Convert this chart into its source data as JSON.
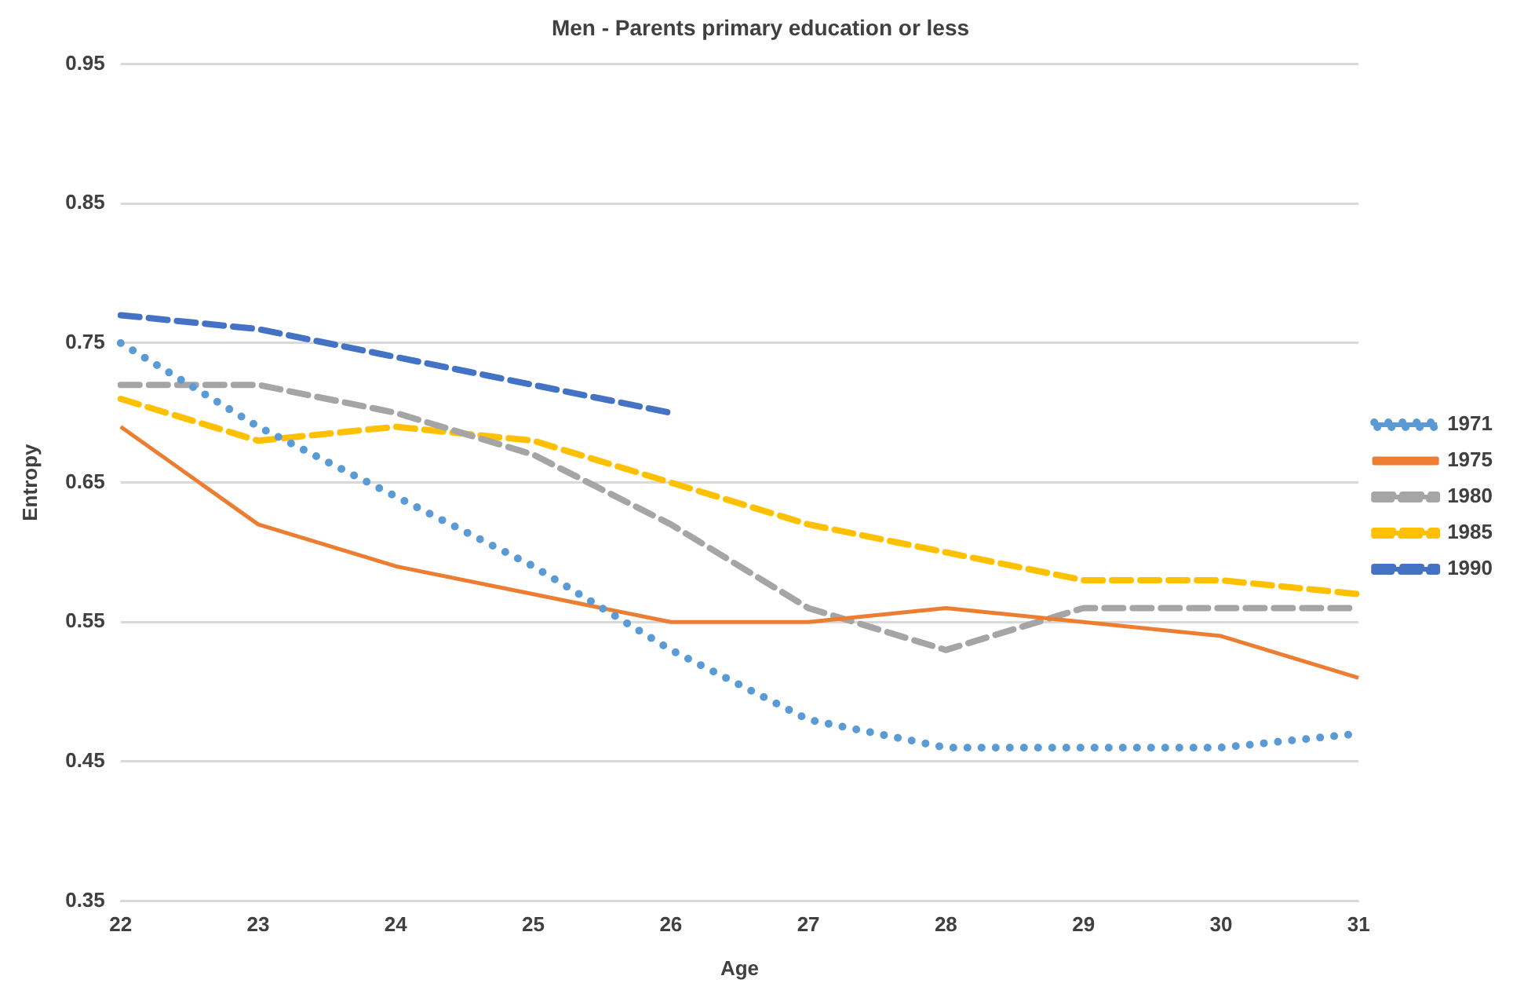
{
  "chart_data": {
    "type": "line",
    "title": "Men - Parents primary education or less",
    "xlabel": "Age",
    "ylabel": "Entropy",
    "categories": [
      "22",
      "23",
      "24",
      "25",
      "26",
      "27",
      "28",
      "29",
      "30",
      "31"
    ],
    "series": [
      {
        "name": "1971",
        "color": "#5b9bd5",
        "line_style": "dotted",
        "values": [
          0.75,
          0.69,
          0.64,
          0.59,
          0.53,
          0.48,
          0.46,
          0.46,
          0.46,
          0.47
        ]
      },
      {
        "name": "1975",
        "color": "#ed7d31",
        "line_style": "solid",
        "values": [
          0.69,
          0.62,
          0.59,
          0.57,
          0.55,
          0.55,
          0.56,
          0.55,
          0.54,
          0.51
        ]
      },
      {
        "name": "1980",
        "color": "#a5a5a5",
        "line_style": "dashed",
        "values": [
          0.72,
          0.72,
          0.7,
          0.67,
          0.62,
          0.56,
          0.53,
          0.56,
          0.56,
          0.56
        ]
      },
      {
        "name": "1985",
        "color": "#ffc000",
        "line_style": "dashed",
        "values": [
          0.71,
          0.68,
          0.69,
          0.68,
          0.65,
          0.62,
          0.6,
          0.58,
          0.58,
          0.57
        ]
      },
      {
        "name": "1990",
        "color": "#4472c4",
        "line_style": "dashed",
        "values": [
          0.77,
          0.76,
          0.74,
          0.72,
          0.7,
          null,
          null,
          null,
          null,
          null
        ]
      }
    ],
    "ylim": [
      0.35,
      0.95
    ],
    "yticks": [
      0.35,
      0.45,
      0.55,
      0.65,
      0.75,
      0.85,
      0.95
    ],
    "grid": "y",
    "legend": "right",
    "marker": "none"
  }
}
